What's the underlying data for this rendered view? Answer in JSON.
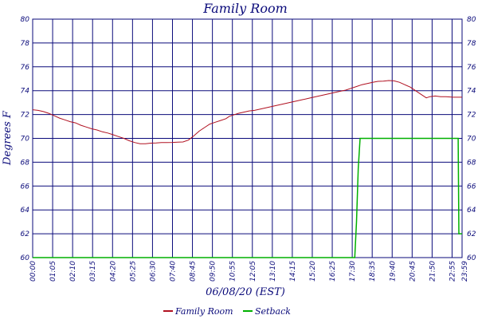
{
  "chart_data": {
    "type": "line",
    "title": "Family Room",
    "xlabel": "06/08/20 (EST)",
    "ylabel": "Degrees F",
    "ylim": [
      60,
      80
    ],
    "y_ticks": [
      60,
      62,
      64,
      66,
      68,
      70,
      72,
      74,
      76,
      78,
      80
    ],
    "x_ticks": [
      "00:00",
      "01:05",
      "02:10",
      "03:15",
      "04:20",
      "05:25",
      "06:30",
      "07:40",
      "08:45",
      "09:50",
      "10:55",
      "12:05",
      "13:10",
      "14:15",
      "15:20",
      "16:25",
      "17:30",
      "18:35",
      "19:40",
      "20:45",
      "21:50",
      "22:55",
      "23:59"
    ],
    "x_range_hours": [
      0,
      24
    ],
    "grid": true,
    "legend_position": "bottom",
    "colors": {
      "axis": "#0a0a7a",
      "grid": "#0a0a7a",
      "family_room": "#b01020",
      "setback": "#00b000"
    },
    "series": [
      {
        "name": "Family Room",
        "color": "#b01020",
        "points": [
          [
            0.0,
            72.4
          ],
          [
            0.3,
            72.35
          ],
          [
            0.6,
            72.25
          ],
          [
            0.9,
            72.1
          ],
          [
            1.2,
            71.9
          ],
          [
            1.5,
            71.7
          ],
          [
            1.8,
            71.55
          ],
          [
            2.1,
            71.4
          ],
          [
            2.4,
            71.3
          ],
          [
            2.7,
            71.1
          ],
          [
            3.0,
            70.95
          ],
          [
            3.3,
            70.8
          ],
          [
            3.6,
            70.7
          ],
          [
            3.9,
            70.55
          ],
          [
            4.2,
            70.45
          ],
          [
            4.5,
            70.3
          ],
          [
            4.8,
            70.15
          ],
          [
            5.1,
            70.0
          ],
          [
            5.4,
            69.8
          ],
          [
            5.7,
            69.65
          ],
          [
            6.0,
            69.55
          ],
          [
            6.3,
            69.55
          ],
          [
            6.6,
            69.6
          ],
          [
            6.9,
            69.62
          ],
          [
            7.2,
            69.65
          ],
          [
            7.5,
            69.65
          ],
          [
            7.8,
            69.66
          ],
          [
            8.1,
            69.68
          ],
          [
            8.4,
            69.7
          ],
          [
            8.7,
            69.85
          ],
          [
            9.0,
            70.2
          ],
          [
            9.3,
            70.6
          ],
          [
            9.6,
            70.9
          ],
          [
            9.9,
            71.2
          ],
          [
            10.2,
            71.35
          ],
          [
            10.5,
            71.5
          ],
          [
            10.8,
            71.65
          ],
          [
            11.0,
            71.85
          ],
          [
            11.2,
            71.95
          ],
          [
            11.5,
            72.1
          ],
          [
            11.8,
            72.2
          ],
          [
            12.1,
            72.3
          ],
          [
            12.4,
            72.35
          ],
          [
            12.7,
            72.45
          ],
          [
            13.0,
            72.55
          ],
          [
            13.3,
            72.65
          ],
          [
            13.6,
            72.75
          ],
          [
            13.9,
            72.85
          ],
          [
            14.2,
            72.95
          ],
          [
            14.5,
            73.05
          ],
          [
            14.8,
            73.15
          ],
          [
            15.1,
            73.25
          ],
          [
            15.4,
            73.35
          ],
          [
            15.7,
            73.45
          ],
          [
            16.0,
            73.55
          ],
          [
            16.3,
            73.65
          ],
          [
            16.6,
            73.75
          ],
          [
            16.9,
            73.85
          ],
          [
            17.2,
            73.95
          ],
          [
            17.5,
            74.05
          ],
          [
            17.8,
            74.2
          ],
          [
            18.1,
            74.35
          ],
          [
            18.4,
            74.5
          ],
          [
            18.7,
            74.6
          ],
          [
            19.0,
            74.7
          ],
          [
            19.3,
            74.78
          ],
          [
            19.6,
            74.8
          ],
          [
            19.9,
            74.85
          ],
          [
            20.2,
            74.82
          ],
          [
            20.5,
            74.7
          ],
          [
            20.8,
            74.5
          ],
          [
            21.1,
            74.3
          ],
          [
            21.4,
            74.0
          ],
          [
            21.7,
            73.7
          ],
          [
            22.0,
            73.4
          ],
          [
            22.2,
            73.5
          ],
          [
            22.5,
            73.55
          ],
          [
            22.8,
            73.5
          ],
          [
            23.1,
            73.5
          ],
          [
            23.5,
            73.45
          ],
          [
            24.0,
            73.45
          ]
        ]
      },
      {
        "name": "Setback",
        "color": "#00b000",
        "points": [
          [
            0.0,
            60.0
          ],
          [
            18.0,
            60.0
          ],
          [
            18.1,
            63.0
          ],
          [
            18.2,
            67.5
          ],
          [
            18.3,
            70.0
          ],
          [
            23.78,
            70.0
          ],
          [
            23.82,
            62.0
          ],
          [
            24.0,
            62.0
          ]
        ]
      }
    ]
  }
}
